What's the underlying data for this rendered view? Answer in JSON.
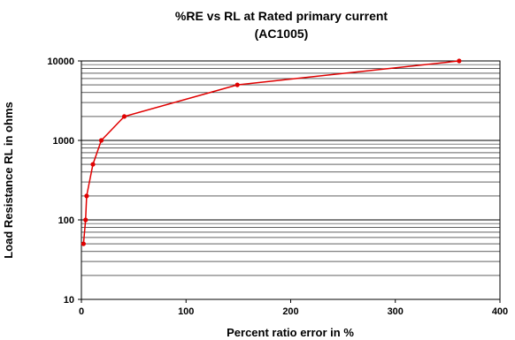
{
  "chart_data": {
    "type": "line",
    "title_lines": [
      "%RE vs RL at Rated primary current",
      "(AC1005)"
    ],
    "xlabel": "Percent ratio error in %",
    "ylabel": "Load Resistance RL in ohms",
    "xlim": [
      0,
      400
    ],
    "ylim": [
      10,
      10000
    ],
    "yscale": "log",
    "grid": true,
    "legend": "none",
    "x_ticks": [
      {
        "value": 0,
        "label": "0"
      },
      {
        "value": 100,
        "label": "100"
      },
      {
        "value": 200,
        "label": "200"
      },
      {
        "value": 300,
        "label": "300"
      },
      {
        "value": 400,
        "label": "400"
      }
    ],
    "y_ticks": [
      {
        "value": 10,
        "label": "10"
      },
      {
        "value": 100,
        "label": "100"
      },
      {
        "value": 1000,
        "label": "1000"
      },
      {
        "value": 10000,
        "label": "10000"
      }
    ],
    "series": [
      {
        "color": "#e00000",
        "points": [
          {
            "x": 2,
            "y": 50
          },
          {
            "x": 4,
            "y": 100
          },
          {
            "x": 5,
            "y": 200
          },
          {
            "x": 11,
            "y": 500
          },
          {
            "x": 19,
            "y": 1000
          },
          {
            "x": 41,
            "y": 2000
          },
          {
            "x": 149,
            "y": 5000
          },
          {
            "x": 361,
            "y": 10000
          }
        ]
      }
    ]
  }
}
